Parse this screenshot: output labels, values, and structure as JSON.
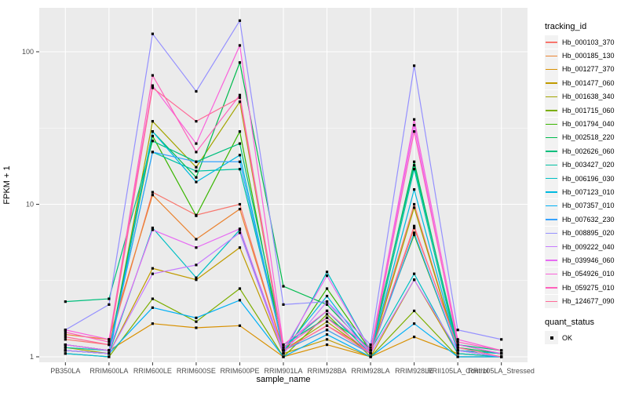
{
  "chart_data": {
    "type": "line",
    "title": "",
    "xlabel": "sample_name",
    "ylabel": "FPKM + 1",
    "x_categories": [
      "PB350LA",
      "RRIM600LA",
      "RRIM600LE",
      "RRIM600SE",
      "RRIM600PE",
      "RRIM901LA",
      "RRIM928BA",
      "RRIM928LA",
      "RRIM928LE",
      "RRII105LA_Control",
      "RRII105LA_Stressed"
    ],
    "y_scale": "log10",
    "y_ticks": [
      1,
      10,
      100
    ],
    "y_tick_labels": [
      "1",
      "10",
      "100"
    ],
    "y_minor_ticks": [
      3.1623,
      31.623
    ],
    "ylim": [
      0.93,
      195
    ],
    "grid": true,
    "legend_position": "right",
    "legend_title": "tracking_id",
    "series": [
      {
        "name": "Hb_000103_370",
        "color": "#F8766D",
        "values": [
          1.3,
          1.2,
          12.0,
          8.5,
          10.0,
          1.1,
          1.6,
          1.1,
          10.0,
          1.1,
          1.05
        ]
      },
      {
        "name": "Hb_000185_130",
        "color": "#EA8331",
        "values": [
          1.4,
          1.3,
          11.5,
          5.9,
          9.3,
          1.1,
          1.5,
          1.05,
          7.0,
          1.2,
          1.05
        ]
      },
      {
        "name": "Hb_001277_370",
        "color": "#D89000",
        "values": [
          1.2,
          1.1,
          1.65,
          1.55,
          1.6,
          1.0,
          1.2,
          1.0,
          1.35,
          1.05,
          1.0
        ]
      },
      {
        "name": "Hb_001477_060",
        "color": "#C09B00",
        "values": [
          1.1,
          1.05,
          3.8,
          3.2,
          5.2,
          1.05,
          1.3,
          1.0,
          3.2,
          1.05,
          1.0
        ]
      },
      {
        "name": "Hb_001638_340",
        "color": "#A3A500",
        "values": [
          1.15,
          1.05,
          35.0,
          17.5,
          47.0,
          1.1,
          1.7,
          1.05,
          9.5,
          1.1,
          1.05
        ]
      },
      {
        "name": "Hb_001715_060",
        "color": "#7CAE00",
        "values": [
          1.05,
          1.0,
          2.4,
          1.7,
          2.8,
          1.0,
          1.9,
          1.0,
          2.0,
          1.0,
          1.0
        ]
      },
      {
        "name": "Hb_001794_040",
        "color": "#39B600",
        "values": [
          1.1,
          1.05,
          28.0,
          8.4,
          30.0,
          1.05,
          2.8,
          1.1,
          6.3,
          1.1,
          1.05
        ]
      },
      {
        "name": "Hb_002518_220",
        "color": "#00BB4E",
        "values": [
          1.2,
          1.1,
          30.0,
          15.0,
          85.0,
          2.9,
          2.2,
          1.1,
          19.0,
          1.15,
          1.05
        ]
      },
      {
        "name": "Hb_002626_060",
        "color": "#00BF7D",
        "values": [
          2.3,
          2.4,
          26.0,
          19.0,
          25.0,
          1.2,
          1.8,
          1.15,
          18.0,
          1.2,
          1.1
        ]
      },
      {
        "name": "Hb_003427_020",
        "color": "#00C1A3",
        "values": [
          1.15,
          1.1,
          22.0,
          16.5,
          17.0,
          1.15,
          2.0,
          1.05,
          17.0,
          1.1,
          1.0
        ]
      },
      {
        "name": "Hb_006196_030",
        "color": "#00BFC4",
        "values": [
          1.1,
          1.05,
          7.0,
          3.3,
          6.8,
          1.05,
          3.6,
          1.1,
          3.5,
          1.05,
          1.0
        ]
      },
      {
        "name": "Hb_007123_010",
        "color": "#00BAE0",
        "values": [
          1.05,
          1.0,
          30.0,
          14.0,
          21.0,
          1.1,
          2.5,
          1.05,
          12.5,
          1.1,
          1.05
        ]
      },
      {
        "name": "Hb_007357_010",
        "color": "#00B0F6",
        "values": [
          1.1,
          1.05,
          2.1,
          1.8,
          2.35,
          1.0,
          1.4,
          1.0,
          1.65,
          1.0,
          1.0
        ]
      },
      {
        "name": "Hb_007632_230",
        "color": "#35A2FF",
        "values": [
          1.2,
          1.1,
          22.0,
          19.0,
          19.0,
          1.1,
          1.5,
          1.05,
          6.5,
          1.1,
          1.0
        ]
      },
      {
        "name": "Hb_008895_020",
        "color": "#9590FF",
        "values": [
          1.5,
          2.2,
          131.0,
          55.0,
          160.0,
          2.2,
          2.3,
          1.2,
          81.0,
          1.5,
          1.3
        ]
      },
      {
        "name": "Hb_009222_040",
        "color": "#C77CFF",
        "values": [
          1.1,
          1.05,
          3.5,
          4.0,
          6.5,
          1.05,
          2.3,
          1.05,
          3.2,
          1.1,
          1.0
        ]
      },
      {
        "name": "Hb_039946_060",
        "color": "#E76BF3",
        "values": [
          1.2,
          1.1,
          6.8,
          5.2,
          6.9,
          1.1,
          3.4,
          1.1,
          33.0,
          1.2,
          1.05
        ]
      },
      {
        "name": "Hb_054926_010",
        "color": "#FA62DB",
        "values": [
          1.5,
          1.3,
          60.0,
          25.0,
          110.0,
          1.2,
          2.0,
          1.1,
          36.0,
          1.3,
          1.1
        ]
      },
      {
        "name": "Hb_059275_010",
        "color": "#FF62BC",
        "values": [
          1.45,
          1.25,
          70.0,
          22.0,
          52.0,
          1.15,
          1.8,
          1.05,
          30.0,
          1.25,
          1.1
        ]
      },
      {
        "name": "Hb_124677_090",
        "color": "#FF6A98",
        "values": [
          1.35,
          1.2,
          58.0,
          35.0,
          50.0,
          1.1,
          1.6,
          1.05,
          7.2,
          1.15,
          1.0
        ]
      }
    ],
    "quant_status": {
      "title": "quant_status",
      "label": "OK",
      "marker_color": "#000000"
    }
  },
  "theme": {
    "panel_bg": "#EBEBEB",
    "grid_color": "#FFFFFF",
    "tick_color": "#333333",
    "tick_label_color": "#4D4D4D",
    "legend_key_bg": "#F2F2F2",
    "point_color": "#000000"
  }
}
